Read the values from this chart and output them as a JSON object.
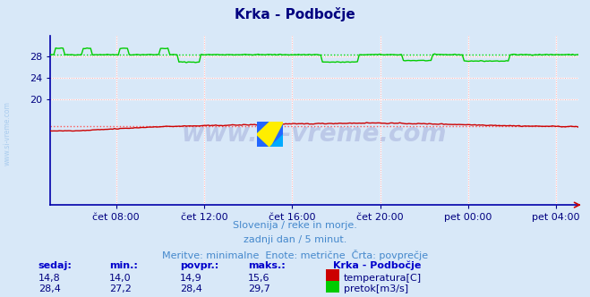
{
  "title": "Krka - Podbočje",
  "bg_color": "#d8e8f8",
  "plot_bg_color": "#d8e8f8",
  "grid_color_major": "#ffffff",
  "grid_color_minor": "#e8c8c8",
  "x_ticks_labels": [
    "čet 08:00",
    "čet 12:00",
    "čet 16:00",
    "čet 20:00",
    "pet 00:00",
    "pet 04:00"
  ],
  "x_ticks_pos": [
    0.125,
    0.292,
    0.458,
    0.625,
    0.792,
    0.958
  ],
  "ylim": [
    0,
    32
  ],
  "yticks": [
    20,
    24,
    28
  ],
  "temp_avg": 14.9,
  "flow_avg": 28.4,
  "temp_color": "#cc0000",
  "flow_color": "#00cc00",
  "footer_line1": "Slovenija / reke in morje.",
  "footer_line2": "zadnji dan / 5 minut.",
  "footer_line3": "Meritve: minimalne  Enote: metrične  Črta: povprečje",
  "watermark": "www.si-vreme.com",
  "label_sedaj": "sedaj:",
  "label_min": "min.:",
  "label_povpr": "povpr.:",
  "label_maks": "maks.:",
  "label_station": "Krka - Podbočje",
  "temp_sedaj": "14,8",
  "temp_min": "14,0",
  "temp_povpr": "14,9",
  "temp_maks": "15,6",
  "flow_sedaj": "28,4",
  "flow_min": "27,2",
  "flow_povpr": "28,4",
  "flow_maks": "29,7",
  "temp_label": "temperatura[C]",
  "flow_label": "pretok[m3/s]",
  "title_color": "#000080",
  "axis_label_color": "#000080",
  "footer_color": "#4488cc",
  "table_header_color": "#0000cc",
  "table_val_color": "#000080",
  "sidebar_color": "#aaccee"
}
